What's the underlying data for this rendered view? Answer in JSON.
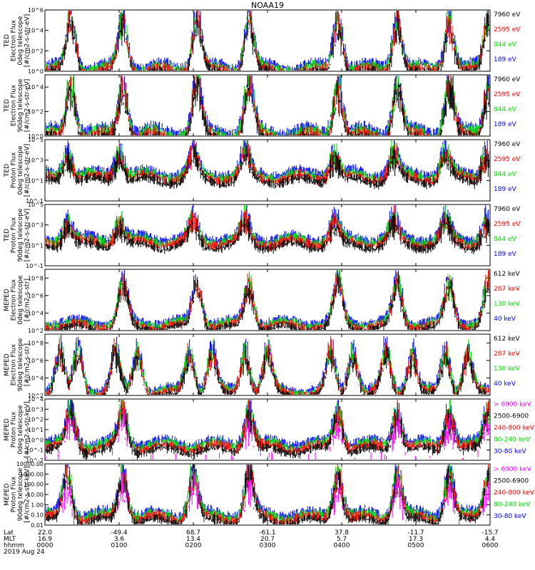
{
  "title": "NOAA19",
  "colors": {
    "red": "#ff0000",
    "green": "#00e000",
    "blue": "#0000ff",
    "black": "#000000",
    "magenta": "#ff00ff"
  },
  "chart_data": [
    {
      "type": "line",
      "instrument": "TED",
      "ylabel_lines": [
        "TED",
        "Electron Flux",
        "0deg telescope",
        "[#/cm2-s-str-eV]"
      ],
      "yticks": [
        "10^0",
        "10^2",
        "10^4",
        "10^6"
      ],
      "yexp": [
        0,
        2,
        4,
        6
      ],
      "ylim_exp": [
        0,
        6
      ],
      "legend": [
        {
          "label": "7960 eV",
          "color": "black"
        },
        {
          "label": "2595 eV",
          "color": "red"
        },
        {
          "label": "844 eV",
          "color": "green"
        },
        {
          "label": "189 eV",
          "color": "blue"
        }
      ],
      "bursts_hours": [
        0.35,
        1.05,
        2.05,
        2.75,
        3.95,
        4.75,
        5.45,
        5.98
      ],
      "burst_peak_exp": 5.3,
      "base_exp": 0.4
    },
    {
      "type": "line",
      "instrument": "TED",
      "ylabel_lines": [
        "TED",
        "Electron Flux",
        "90deg telescope",
        "[#/cm2-s-str-eV]"
      ],
      "yticks": [
        "10^0",
        "10^2",
        "10^4"
      ],
      "yexp": [
        0,
        2,
        4
      ],
      "ylim_exp": [
        0,
        5
      ],
      "legend": [
        {
          "label": "7960 eV",
          "color": "black"
        },
        {
          "label": "2595 eV",
          "color": "red"
        },
        {
          "label": "844 eV",
          "color": "green"
        },
        {
          "label": "189 eV",
          "color": "blue"
        }
      ],
      "bursts_hours": [
        0.35,
        1.05,
        2.05,
        2.75,
        3.95,
        4.75,
        5.45,
        5.98
      ],
      "burst_peak_exp": 4.4,
      "base_exp": 0.3
    },
    {
      "type": "line",
      "instrument": "TED",
      "ylabel_lines": [
        "TED",
        "Proton Flux",
        "0deg telescope",
        "[#/cm2-s-str-eV]"
      ],
      "yticks": [
        "10^-1",
        "10^1",
        "10^3",
        "10^5"
      ],
      "yexp": [
        -1,
        1,
        3,
        5
      ],
      "ylim_exp": [
        -1,
        5
      ],
      "legend": [
        {
          "label": "7960 eV",
          "color": "black"
        },
        {
          "label": "2595 eV",
          "color": "red"
        },
        {
          "label": "844 eV",
          "color": "green"
        },
        {
          "label": "189 eV",
          "color": "blue"
        }
      ],
      "bursts_hours": [
        0.3,
        1.0,
        2.0,
        2.7,
        3.9,
        4.7,
        5.4,
        5.95
      ],
      "burst_peak_exp": 3.8,
      "base_exp": 1.6
    },
    {
      "type": "line",
      "instrument": "TED",
      "ylabel_lines": [
        "TED",
        "Proton Flux",
        "90deg telescope",
        "[#/cm2-s-str-eV]"
      ],
      "yticks": [
        "10^-1",
        "10^1",
        "10^3",
        "10^5"
      ],
      "yexp": [
        -1,
        1,
        3,
        5
      ],
      "ylim_exp": [
        -1,
        5
      ],
      "legend": [
        {
          "label": "7960 eV",
          "color": "black"
        },
        {
          "label": "2595 eV",
          "color": "red"
        },
        {
          "label": "844 eV",
          "color": "green"
        },
        {
          "label": "189 eV",
          "color": "blue"
        }
      ],
      "bursts_hours": [
        0.3,
        1.0,
        2.0,
        2.7,
        3.9,
        4.7,
        5.4,
        5.95
      ],
      "burst_peak_exp": 3.4,
      "base_exp": 1.6
    },
    {
      "type": "line",
      "instrument": "MEPED",
      "ylabel_lines": [
        "MEPED",
        "Electron Flux",
        "0deg telescope",
        "[#/cm2-s-str]"
      ],
      "yticks": [
        "10^2",
        "10^4",
        "10^6",
        "10^8"
      ],
      "yexp": [
        2,
        4,
        6,
        8
      ],
      "ylim_exp": [
        2,
        9
      ],
      "legend": [
        {
          "label": "612 keV",
          "color": "black"
        },
        {
          "label": "287 keV",
          "color": "red"
        },
        {
          "label": "130 keV",
          "color": "green"
        },
        {
          "label": "40 keV",
          "color": "blue"
        }
      ],
      "bursts_hours": [
        1.05,
        2.05,
        2.75,
        3.95,
        4.75,
        5.45,
        5.98
      ],
      "burst_peak_exp": 7.6,
      "base_exp": 2.9
    },
    {
      "type": "line",
      "instrument": "MEPED",
      "ylabel_lines": [
        "MEPED",
        "Electron Flux",
        "90deg telescope",
        "[#/cm2-s-str]"
      ],
      "yticks": [
        "10^2",
        "10^4",
        "10^6",
        "10^8"
      ],
      "yexp": [
        2,
        4,
        6,
        8
      ],
      "ylim_exp": [
        2,
        9
      ],
      "legend": [
        {
          "label": "612 keV",
          "color": "black"
        },
        {
          "label": "287 keV",
          "color": "red"
        },
        {
          "label": "130 keV",
          "color": "green"
        },
        {
          "label": "40 keV",
          "color": "blue"
        }
      ],
      "bursts_hours": [
        0.2,
        0.45,
        0.95,
        1.25,
        1.95,
        2.25,
        2.7,
        3.0,
        3.85,
        4.15,
        4.6,
        4.95,
        5.4,
        5.7
      ],
      "burst_peak_exp": 7.0,
      "base_exp": 2.6
    },
    {
      "type": "line",
      "instrument": "MEPED",
      "ylabel_lines": [
        "MEPED",
        "Proton Flux",
        "0deg telescope",
        "[#/cm2-s-str-keV]"
      ],
      "yticks": [
        "10^-2",
        "10^-1",
        "10^0",
        "10^1",
        "10^2",
        "10^3",
        "10^4"
      ],
      "yexp": [
        -2,
        -1,
        0,
        1,
        2,
        3,
        4
      ],
      "ylim_exp": [
        -2,
        4
      ],
      "legend": [
        {
          "label": "> 6900 keV",
          "color": "magenta"
        },
        {
          "label": "2500-6900",
          "color": "black"
        },
        {
          "label": "240-800 keV",
          "color": "red"
        },
        {
          "label": "80-240 keV",
          "color": "green"
        },
        {
          "label": "30-80 keV",
          "color": "blue"
        }
      ],
      "bursts_hours": [
        0.35,
        1.05,
        2.75,
        3.95,
        4.75,
        5.45,
        5.98
      ],
      "burst_peak_exp": 3.0,
      "base_exp": -0.4
    },
    {
      "type": "line",
      "instrument": "MEPED",
      "ylabel_lines": [
        "MEPED",
        "Proton Flux",
        "90deg telescope",
        "[#/cm2-s-str-keV]"
      ],
      "yticks": [
        "0.01",
        "0.10",
        "1.00",
        "10.00",
        "100.00",
        "1000.00",
        "10000.00"
      ],
      "yexp": [
        -2,
        -1,
        0,
        1,
        2,
        3,
        4
      ],
      "ylim_exp": [
        -2,
        4
      ],
      "legend": [
        {
          "label": "> 6900 keV",
          "color": "magenta"
        },
        {
          "label": "2500-6900",
          "color": "black"
        },
        {
          "label": "240-800 keV",
          "color": "red"
        },
        {
          "label": "80-240 keV",
          "color": "green"
        },
        {
          "label": "30-80 keV",
          "color": "blue"
        }
      ],
      "bursts_hours": [
        0.3,
        1.05,
        2.0,
        2.75,
        3.95,
        4.75,
        5.45,
        5.98
      ],
      "burst_peak_exp": 3.2,
      "base_exp": -1.0
    }
  ],
  "time_axis": {
    "row_labels": [
      "Lat",
      "MLT",
      "hhmm",
      "2019 Aug 24"
    ],
    "hours": [
      0,
      1,
      2,
      3,
      4,
      5,
      6
    ],
    "lat": [
      "22.0",
      "-49.4",
      "68.7",
      "-61.1",
      "37.8",
      "-11.7",
      "-15.7"
    ],
    "mlt": [
      "16.9",
      "3.6",
      "13.4",
      "20.7",
      "5.7",
      "17.3",
      "4.4"
    ],
    "hhmm": [
      "0000",
      "0100",
      "0200",
      "0300",
      "0400",
      "0500",
      "0600"
    ],
    "xlim_hours": [
      0,
      6
    ]
  }
}
